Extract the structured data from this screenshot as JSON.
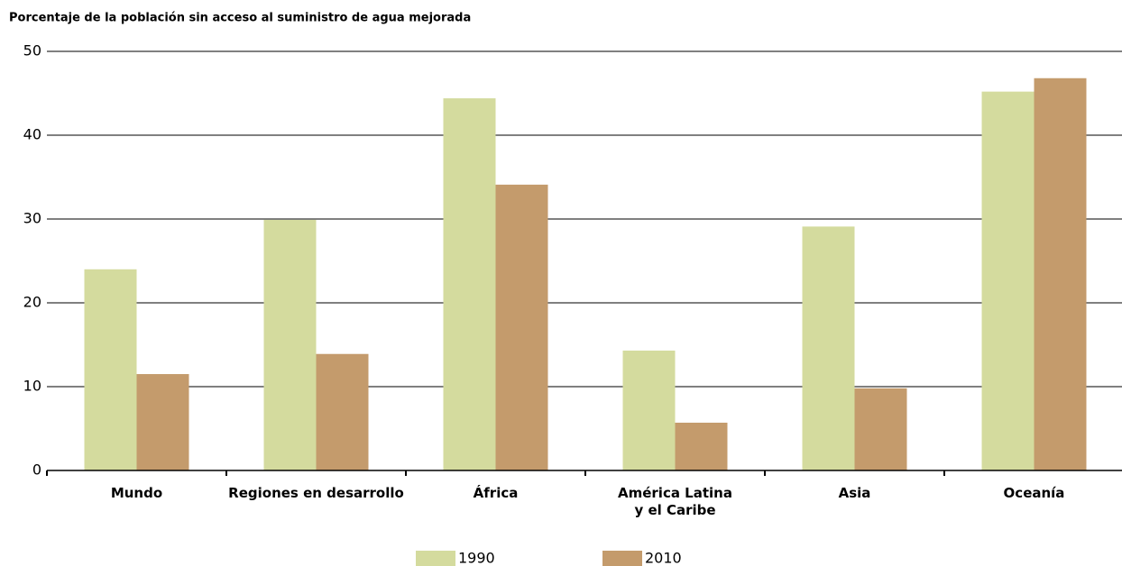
{
  "chart_data": {
    "type": "bar",
    "title": "Porcentaje de la población sin acceso al suministro de agua mejorada",
    "categories": [
      "Mundo",
      "Regiones en desarrollo",
      "África",
      "América Latina\ny el Caribe",
      "Asia",
      "Oceanía"
    ],
    "series": [
      {
        "name": "1990",
        "color": "#d4db9e",
        "values": [
          24,
          29.9,
          44.4,
          14.3,
          29.1,
          45.2
        ]
      },
      {
        "name": "2010",
        "color": "#c49b6c",
        "values": [
          11.5,
          13.9,
          34.1,
          5.7,
          9.8,
          46.8
        ]
      }
    ],
    "ylim": [
      0,
      50
    ],
    "yticks": [
      0,
      10,
      20,
      30,
      40,
      50
    ],
    "grid": true,
    "legend": "bottom"
  }
}
